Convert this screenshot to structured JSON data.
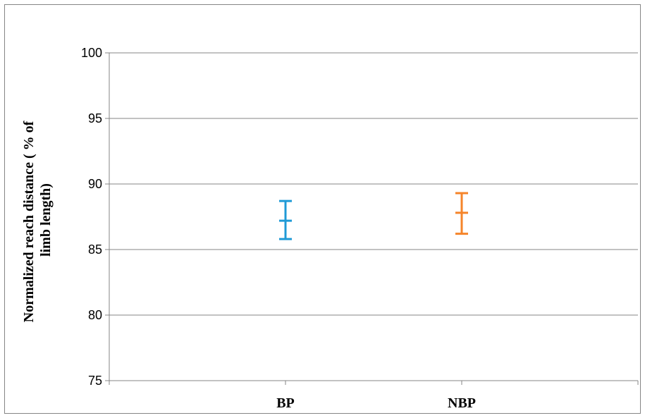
{
  "chart_data": {
    "type": "error-bar",
    "categories": [
      "BP",
      "NBP"
    ],
    "series": [
      {
        "color": "#1f9ad6",
        "points": [
          {
            "category": "BP",
            "mean": 87.2,
            "low": 85.8,
            "high": 88.7
          }
        ]
      },
      {
        "color": "#f5842a",
        "points": [
          {
            "category": "NBP",
            "mean": 87.8,
            "low": 86.2,
            "high": 89.3
          }
        ]
      }
    ],
    "ylabel_lines": [
      "Normalized reach distance ( % of",
      "limb length)"
    ],
    "ylim": [
      75,
      100
    ],
    "yticks": [
      75,
      80,
      85,
      90,
      95,
      100
    ],
    "grid": true,
    "legend": "none"
  }
}
